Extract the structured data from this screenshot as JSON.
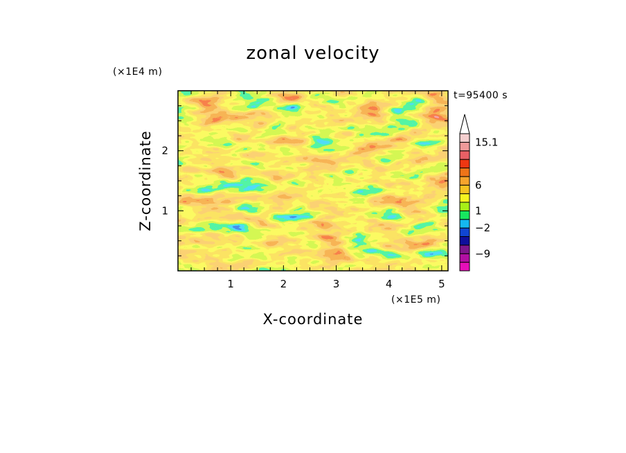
{
  "chart_data": {
    "type": "heatmap",
    "title": "zonal velocity",
    "xlabel": "X-coordinate",
    "ylabel": "Z-coordinate",
    "x_multiplier": "(×1E5 m)",
    "y_multiplier": "(×1E4 m)",
    "time_label": "t=95400 s",
    "xlim": [
      0,
      5.12
    ],
    "ylim": [
      0,
      3.0
    ],
    "x_ticks": [
      "1",
      "2",
      "3",
      "4",
      "5"
    ],
    "y_ticks": [
      "1",
      "2"
    ],
    "colorbar": {
      "labels": [
        "15.1",
        "6",
        "1",
        "−2",
        "−9"
      ],
      "levels": [
        {
          "color": "#e60fb9"
        },
        {
          "color": "#b20fa3"
        },
        {
          "color": "#7f168d"
        },
        {
          "color": "#0f0f9c"
        },
        {
          "color": "#1046d2"
        },
        {
          "color": "#15b7f0"
        },
        {
          "color": "#17e65f"
        },
        {
          "color": "#a7ef17"
        },
        {
          "color": "#f6f420"
        },
        {
          "color": "#f6c321"
        },
        {
          "color": "#f6a42c"
        },
        {
          "color": "#ef7418"
        },
        {
          "color": "#ee3712"
        },
        {
          "color": "#e86065"
        },
        {
          "color": "#f09a9a"
        },
        {
          "color": "#f5cfcf"
        }
      ],
      "extend_max": true,
      "extend_min": false
    }
  }
}
